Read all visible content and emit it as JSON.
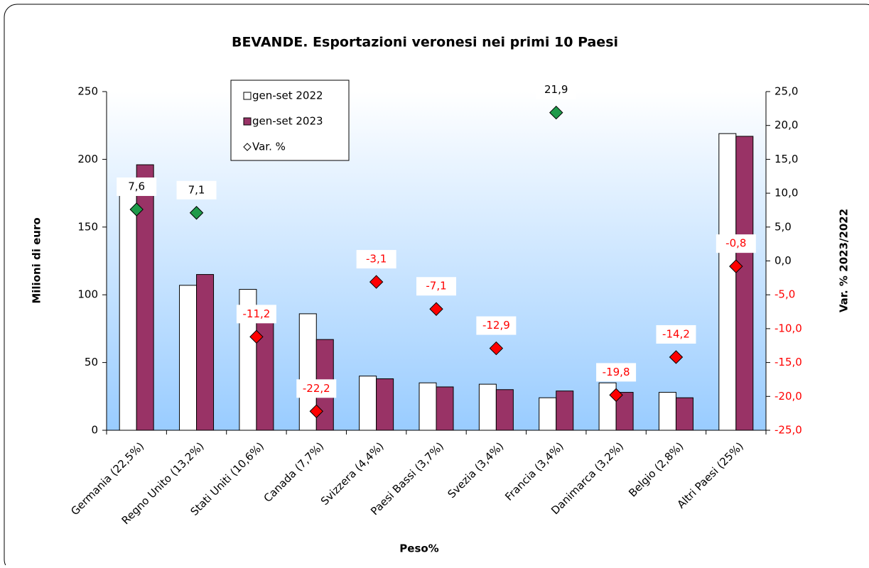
{
  "chart_data": {
    "type": "bar",
    "title": "BEVANDE. Esportazioni veronesi nei primi 10 Paesi",
    "x_label": "Peso%",
    "y_label": "Milioni di euro",
    "y2_label": "Var. % 2023/2022",
    "categories": [
      "Germania  (22,5%)",
      "Regno Unito  (13,2%)",
      "Stati Uniti  (10,6%)",
      "Canada  (7,7%)",
      "Svizzera  (4,4%)",
      "Paesi Bassi  (3,7%)",
      "Svezia  (3,4%)",
      "Francia  (3,4%)",
      "Danimarca  (3,2%)",
      "Belgio  (2,8%)",
      "Altri Paesi (25%)"
    ],
    "series": [
      {
        "name": "gen-set 2022",
        "type": "bar",
        "color": "#ffffff",
        "values": [
          182,
          107,
          104,
          86,
          40,
          35,
          34,
          24,
          35,
          28,
          219
        ]
      },
      {
        "name": "gen-set 2023",
        "type": "bar",
        "color": "#993366",
        "values": [
          196,
          115,
          92,
          67,
          38,
          32,
          30,
          29,
          28,
          24,
          217
        ]
      },
      {
        "name": "Var. %",
        "type": "scatter",
        "axis": "y2",
        "positive_color": "#1f9a4a",
        "negative_color": "#ff0000",
        "values": [
          7.6,
          7.1,
          -11.2,
          -22.2,
          -3.1,
          -7.1,
          -12.9,
          21.9,
          -19.8,
          -14.2,
          -0.8
        ],
        "value_labels": [
          "7,6",
          "7,1",
          "-11,2",
          "-22,2",
          "-3,1",
          "-7,1",
          "-12,9",
          "21,9",
          "-19,8",
          "-14,2",
          "-0,8"
        ]
      }
    ],
    "ylim": [
      0,
      250
    ],
    "yticks": [
      0,
      50,
      100,
      150,
      200,
      250
    ],
    "y2lim": [
      -25,
      25
    ],
    "y2ticks": [
      {
        "value": -25,
        "label": "-25,0"
      },
      {
        "value": -20,
        "label": "-20,0"
      },
      {
        "value": -15,
        "label": "-15,0"
      },
      {
        "value": -10,
        "label": "-10,0"
      },
      {
        "value": -5,
        "label": "-5,0"
      },
      {
        "value": 0,
        "label": "0,0"
      },
      {
        "value": 5,
        "label": "5,0"
      },
      {
        "value": 10,
        "label": "10,0"
      },
      {
        "value": 15,
        "label": "15,0"
      },
      {
        "value": 20,
        "label": "20,0"
      },
      {
        "value": 25,
        "label": "25,0"
      }
    ]
  }
}
